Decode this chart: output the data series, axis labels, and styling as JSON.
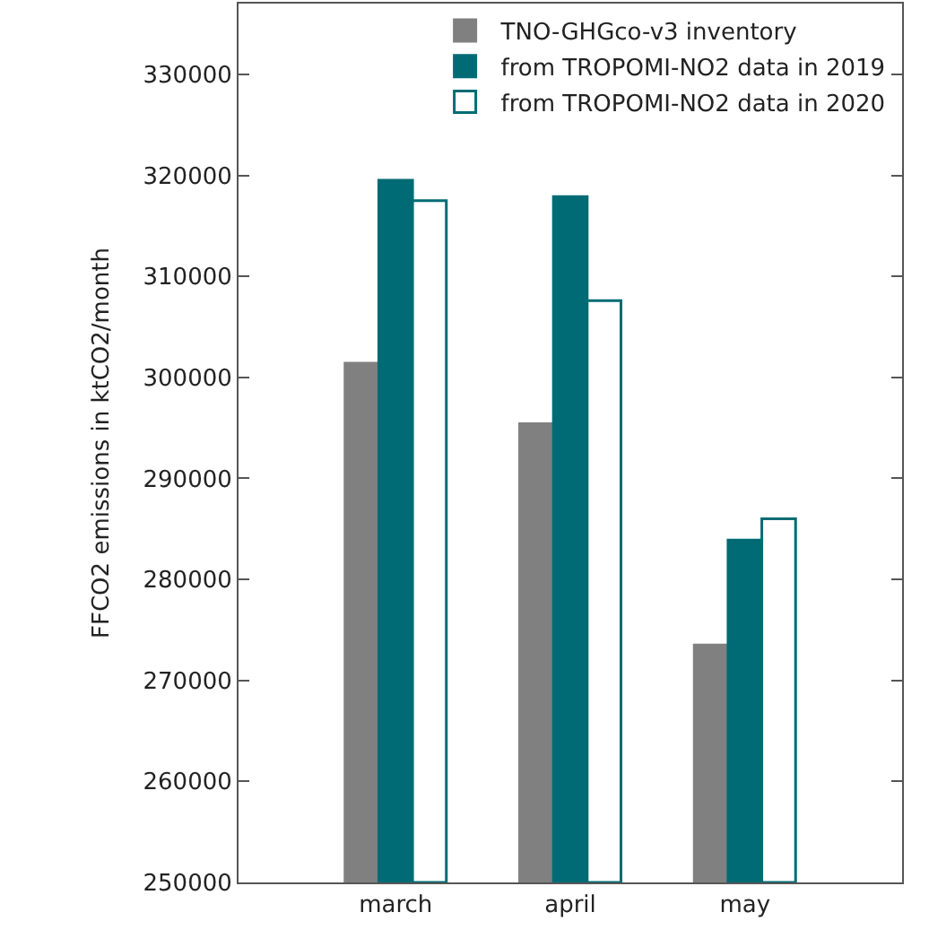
{
  "chart_data": {
    "type": "bar",
    "ylabel": "FFCO2 emissions in ktCO2/month",
    "categories": [
      "march",
      "april",
      "may"
    ],
    "series": [
      {
        "name": "TNO-GHGco-v3 inventory",
        "color": "#808080",
        "values": [
          301400,
          295400,
          273500
        ]
      },
      {
        "name": "from TROPOMI-NO2 data in 2019",
        "color": "#006b74",
        "values": [
          319500,
          317900,
          283900
        ]
      },
      {
        "name": "from TROPOMI-NO2 data in 2020",
        "color": "#ffffff",
        "values": [
          317500,
          307600,
          286000
        ]
      }
    ],
    "ylim": [
      250000,
      337000
    ],
    "yticks": [
      250000,
      260000,
      270000,
      280000,
      290000,
      300000,
      310000,
      320000,
      330000
    ],
    "legend": "top right"
  }
}
